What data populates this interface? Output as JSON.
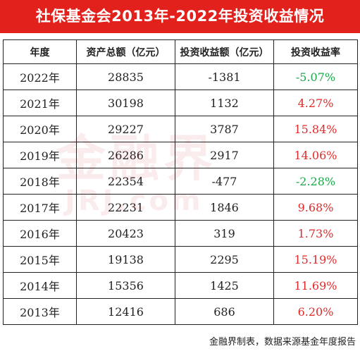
{
  "title": "社保基金会2013年-2022年投资收益情况",
  "headers": [
    "年度",
    "资产总额（亿元）",
    "投资收益额（亿元）",
    "投资收益率"
  ],
  "rows": [
    {
      "year": "2022年",
      "assets": "28835",
      "income": "-1381",
      "rate": "-5.07%",
      "sign": "neg"
    },
    {
      "year": "2021年",
      "assets": "30198",
      "income": "1132",
      "rate": "4.27%",
      "sign": "pos"
    },
    {
      "year": "2020年",
      "assets": "29227",
      "income": "3787",
      "rate": "15.84%",
      "sign": "pos"
    },
    {
      "year": "2019年",
      "assets": "26286",
      "income": "2917",
      "rate": "14.06%",
      "sign": "pos"
    },
    {
      "year": "2018年",
      "assets": "22354",
      "income": "-477",
      "rate": "-2.28%",
      "sign": "neg"
    },
    {
      "year": "2017年",
      "assets": "22231",
      "income": "1846",
      "rate": "9.68%",
      "sign": "pos"
    },
    {
      "year": "2016年",
      "assets": "20423",
      "income": "319",
      "rate": "1.73%",
      "sign": "pos"
    },
    {
      "year": "2015年",
      "assets": "19138",
      "income": "2295",
      "rate": "15.19%",
      "sign": "pos"
    },
    {
      "year": "2014年",
      "assets": "15356",
      "income": "1425",
      "rate": "11.69%",
      "sign": "pos"
    },
    {
      "year": "2013年",
      "assets": "12416",
      "income": "686",
      "rate": "6.20%",
      "sign": "pos"
    }
  ],
  "watermark": {
    "main": "金融界",
    "sub": "JRJ.com"
  },
  "footer": "金融界制表，数据来源基金年度报告",
  "colors": {
    "banner": "#e2211c",
    "positive": "#e02a2a",
    "negative": "#1aa84a"
  }
}
